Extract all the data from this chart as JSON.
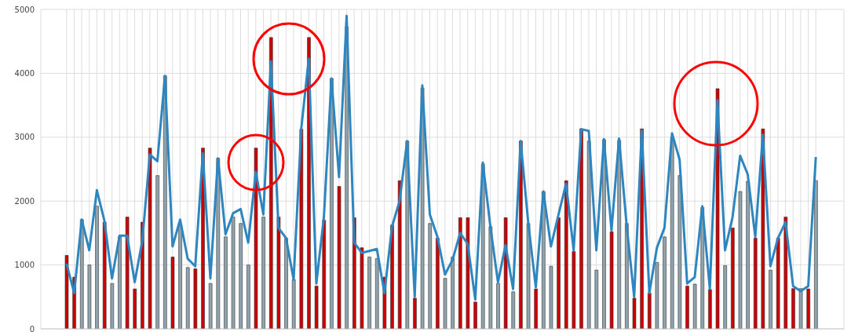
{
  "chart_data": {
    "type": "bar",
    "categories": [
      null,
      null,
      null,
      null,
      null,
      null,
      null,
      null,
      null,
      null,
      null,
      null,
      null,
      null,
      null,
      null,
      null,
      null,
      null,
      null,
      null,
      null,
      null,
      null,
      null,
      null,
      null,
      null,
      null,
      null,
      null,
      null,
      null,
      null,
      null,
      null,
      null,
      null,
      null,
      null,
      null,
      null,
      null,
      null,
      null,
      null,
      null,
      null,
      null,
      null,
      null,
      null,
      null,
      null,
      null,
      null,
      null,
      null,
      null,
      null,
      null,
      null,
      null,
      null,
      null,
      null,
      null,
      null,
      null,
      null,
      null,
      null,
      null,
      null,
      null,
      null,
      null,
      null,
      null,
      null,
      null,
      null,
      null,
      null,
      null,
      null,
      null,
      null,
      null,
      null,
      null,
      null,
      null,
      null,
      null,
      null,
      null,
      null,
      null,
      null
    ],
    "series": [
      {
        "color": "#90a4ae",
        "values": [
          1150,
          810,
          1710,
          1000,
          1920,
          1670,
          710,
          1440,
          1750,
          625,
          1670,
          2830,
          2400,
          3960,
          1125,
          1625,
          960,
          940,
          2830,
          710,
          2670,
          1440,
          1750,
          1650,
          1000,
          2830,
          1750,
          4560,
          1750,
          1420,
          770,
          3125,
          4560,
          670,
          1700,
          3920,
          2230,
          4730,
          1740,
          1270,
          1125,
          1100,
          810,
          1625,
          2320,
          2940,
          480,
          3770,
          1650,
          1420,
          790,
          1125,
          1740,
          1740,
          420,
          2580,
          1600,
          710,
          1740,
          580,
          2940,
          1650,
          625,
          2150,
          980,
          1740,
          2320,
          1210,
          3130,
          2940,
          920,
          2960,
          1520,
          2950,
          1650,
          480,
          3130,
          560,
          1040,
          1440,
          3000,
          2400,
          670,
          700,
          1900,
          615,
          3760,
          990,
          1580,
          2150,
          2310,
          1420,
          3130,
          920,
          1420,
          1750,
          630,
          630,
          625,
          2320
        ],
        "colors": [
          "#cc0000",
          "#cc0000",
          "#90a4ae",
          "#90a4ae",
          "#90a4ae",
          "#cc0000",
          "#90a4ae",
          "#90a4ae",
          "#cc0000",
          "#cc0000",
          "#cc0000",
          "#cc0000",
          "#90a4ae",
          "#90a4ae",
          "#cc0000",
          "#90a4ae",
          "#90a4ae",
          "#cc0000",
          "#cc0000",
          "#90a4ae",
          "#90a4ae",
          "#90a4ae",
          "#90a4ae",
          "#90a4ae",
          "#90a4ae",
          "#cc0000",
          "#90a4ae",
          "#cc0000",
          "#cc0000",
          "#90a4ae",
          "#90a4ae",
          "#cc0000",
          "#cc0000",
          "#cc0000",
          "#cc0000",
          "#90a4ae",
          "#cc0000",
          "#90a4ae",
          "#cc0000",
          "#cc0000",
          "#90a4ae",
          "#90a4ae",
          "#cc0000",
          "#cc0000",
          "#cc0000",
          "#90a4ae",
          "#cc0000",
          "#90a4ae",
          "#90a4ae",
          "#cc0000",
          "#90a4ae",
          "#90a4ae",
          "#cc0000",
          "#cc0000",
          "#cc0000",
          "#90a4ae",
          "#90a4ae",
          "#90a4ae",
          "#cc0000",
          "#90a4ae",
          "#cc0000",
          "#90a4ae",
          "#cc0000",
          "#90a4ae",
          "#90a4ae",
          "#cc0000",
          "#cc0000",
          "#cc0000",
          "#cc0000",
          "#90a4ae",
          "#90a4ae",
          "#90a4ae",
          "#cc0000",
          "#90a4ae",
          "#90a4ae",
          "#cc0000",
          "#cc0000",
          "#cc0000",
          "#90a4ae",
          "#90a4ae",
          "#90a4ae",
          "#90a4ae",
          "#cc0000",
          "#90a4ae",
          "#90a4ae",
          "#cc0000",
          "#cc0000",
          "#90a4ae",
          "#cc0000",
          "#90a4ae",
          "#90a4ae",
          "#cc0000",
          "#cc0000",
          "#90a4ae",
          "#cc0000",
          "#cc0000",
          "#cc0000",
          "#90a4ae",
          "#cc0000",
          "#90a4ae"
        ]
      },
      {
        "type": "line",
        "color": "#2e86c1",
        "values": [
          1020,
          560,
          1710,
          1230,
          2170,
          1690,
          790,
          1460,
          1460,
          730,
          1375,
          2730,
          2625,
          3960,
          1290,
          1710,
          1100,
          980,
          2750,
          790,
          2670,
          1480,
          1810,
          1875,
          1350,
          2460,
          1790,
          4190,
          1580,
          1420,
          770,
          3125,
          4230,
          710,
          1750,
          3920,
          2375,
          4900,
          1350,
          1190,
          1220,
          1250,
          560,
          1600,
          2000,
          2940,
          500,
          3810,
          1790,
          1440,
          850,
          1080,
          1500,
          1330,
          460,
          2600,
          1600,
          730,
          1310,
          625,
          2940,
          1660,
          650,
          2150,
          1290,
          1790,
          2270,
          1230,
          3125,
          3100,
          1230,
          2970,
          1540,
          2980,
          1625,
          500,
          3100,
          560,
          1270,
          1580,
          3060,
          2650,
          710,
          810,
          1920,
          625,
          3580,
          1230,
          1750,
          2710,
          2420,
          1440,
          3040,
          980,
          1420,
          1670,
          670,
          590,
          670,
          2690
        ]
      }
    ],
    "ylim": [
      0,
      5000
    ],
    "yticks": [
      0,
      1000,
      2000,
      3000,
      4000,
      5000
    ],
    "grid": true,
    "marker": "none",
    "line_style": "solid"
  }
}
